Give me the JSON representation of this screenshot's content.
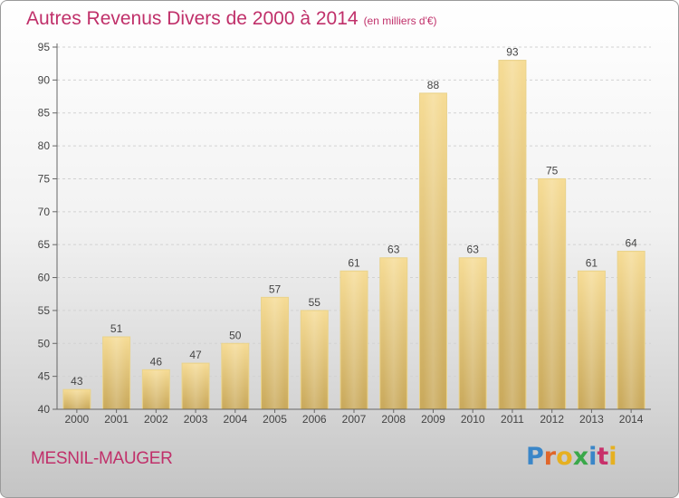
{
  "header": {
    "title": "Autres Revenus Divers de 2000 à 2014",
    "unit": "(en milliers d'€)"
  },
  "footer": {
    "commune": "MESNIL-MAUGER",
    "logo_letters": [
      "P",
      "r",
      "o",
      "x",
      "i",
      "t",
      "i"
    ],
    "logo_colors": [
      "#3a86c8",
      "#e0662a",
      "#e6b020",
      "#3aa84a",
      "#3a86c8",
      "#c8306a",
      "#e6b020"
    ]
  },
  "chart_data": {
    "type": "bar",
    "title": "Autres Revenus Divers de 2000 à 2014",
    "subtitle": "(en milliers d'€)",
    "categories": [
      "2000",
      "2001",
      "2002",
      "2003",
      "2004",
      "2005",
      "2006",
      "2007",
      "2008",
      "2009",
      "2010",
      "2011",
      "2012",
      "2013",
      "2014"
    ],
    "values": [
      43,
      51,
      46,
      47,
      50,
      57,
      55,
      61,
      63,
      88,
      63,
      93,
      75,
      61,
      64
    ],
    "ylim": [
      40,
      95
    ],
    "yticks": [
      "40",
      "45",
      "50",
      "55",
      "60",
      "65",
      "70",
      "75",
      "80",
      "85",
      "90",
      "95"
    ],
    "grid": true,
    "legend": "none",
    "bar_color": "#e8cd7e"
  }
}
